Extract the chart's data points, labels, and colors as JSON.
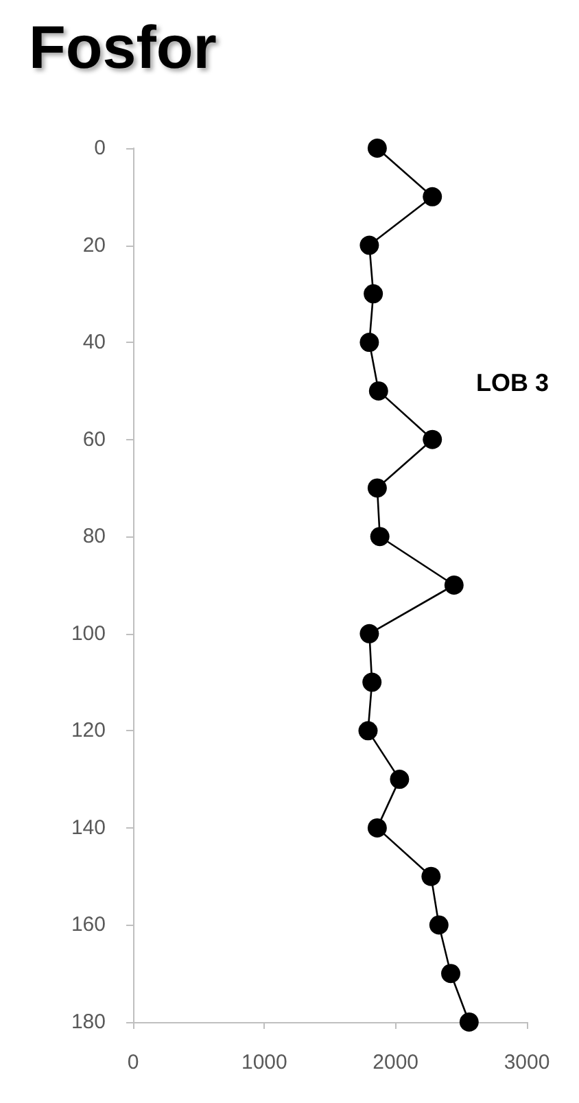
{
  "chart_data": {
    "type": "line",
    "title": "Fosfor",
    "annotations": [
      "LOB 3"
    ],
    "x": [
      1860,
      2280,
      1800,
      1830,
      1800,
      1870,
      2280,
      1860,
      1880,
      2445,
      1800,
      1820,
      1790,
      2030,
      1860,
      2270,
      2330,
      2420,
      2560
    ],
    "series": [
      {
        "color": "#000000",
        "values": [
          0,
          10,
          20,
          30,
          40,
          50,
          60,
          70,
          80,
          90,
          100,
          110,
          120,
          130,
          140,
          150,
          160,
          170,
          180
        ]
      }
    ],
    "xlim": [
      0,
      3000
    ],
    "xticks": [
      0,
      1000,
      2000,
      3000
    ],
    "ylim": [
      180,
      0
    ],
    "yticks": [
      0,
      20,
      40,
      60,
      80,
      100,
      120,
      140,
      160,
      180
    ],
    "marker": "circle",
    "line_style": "solid"
  }
}
